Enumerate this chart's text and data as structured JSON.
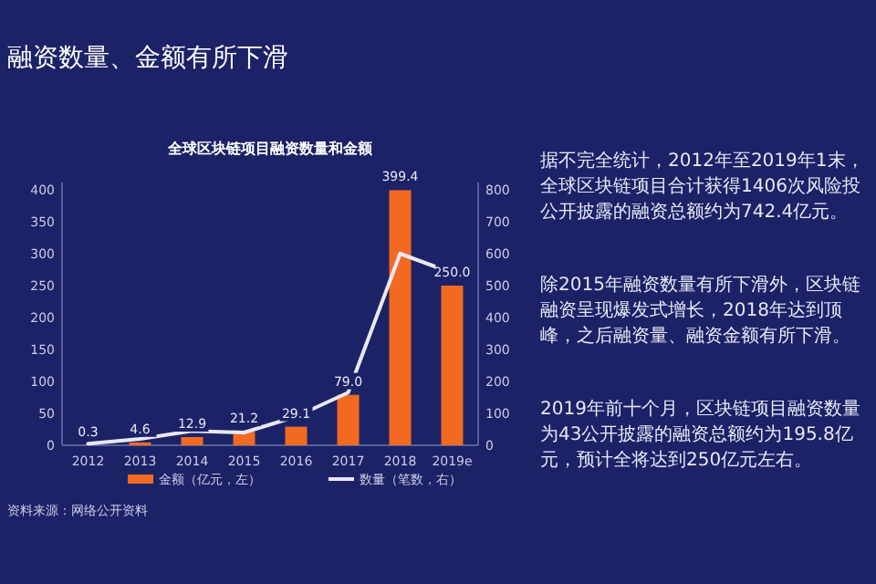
{
  "chart_data": {
    "type": "bar",
    "title": "全球区块链项目融资数量和金额",
    "categories": [
      "2012",
      "2013",
      "2014",
      "2015",
      "2016",
      "2017",
      "2018",
      "2019e"
    ],
    "series": [
      {
        "name": "金额（亿元，左）",
        "color": "#f26a21",
        "values": [
          0.3,
          4.6,
          12.9,
          21.2,
          29.1,
          79.0,
          399.4,
          250.0
        ],
        "value_labels": [
          "0.3",
          "4.6",
          "12.9",
          "21.2",
          "29.1",
          "79.0",
          "399.4",
          "250.0"
        ]
      },
      {
        "name": "数量（笔数，右）",
        "type": "line",
        "axis": "y2",
        "color": "#e8e8f4",
        "values": [
          5,
          20,
          45,
          40,
          90,
          165,
          600,
          540
        ]
      }
    ],
    "ylim": [
      0,
      400
    ],
    "yticks": [
      0,
      50,
      100,
      150,
      200,
      250,
      300,
      350,
      400
    ],
    "y2lim": [
      0,
      800
    ],
    "y2ticks": [
      0,
      100,
      200,
      300,
      400,
      500,
      600,
      700,
      800
    ],
    "legend": "bottom",
    "grid": false,
    "marker": "none",
    "line_style": "solid",
    "annotations": [
      "融资数量、金额有所下滑",
      "据不完全统计，2012年至2019年1末，全球区块链项目合计获得1406次风险投公开披露的融资总额约为742.4亿元。",
      "除2015年融资数量有所下滑外，区块链融资呈现爆发式增长，2018年达到顶峰，之后融资量、融资金额有所下滑。",
      "2019年前十个月，区块链项目融资数量为43公开披露的融资总额约为195.8亿元，预计全将达到250亿元左右。",
      "资料来源：网络公开资料"
    ]
  }
}
